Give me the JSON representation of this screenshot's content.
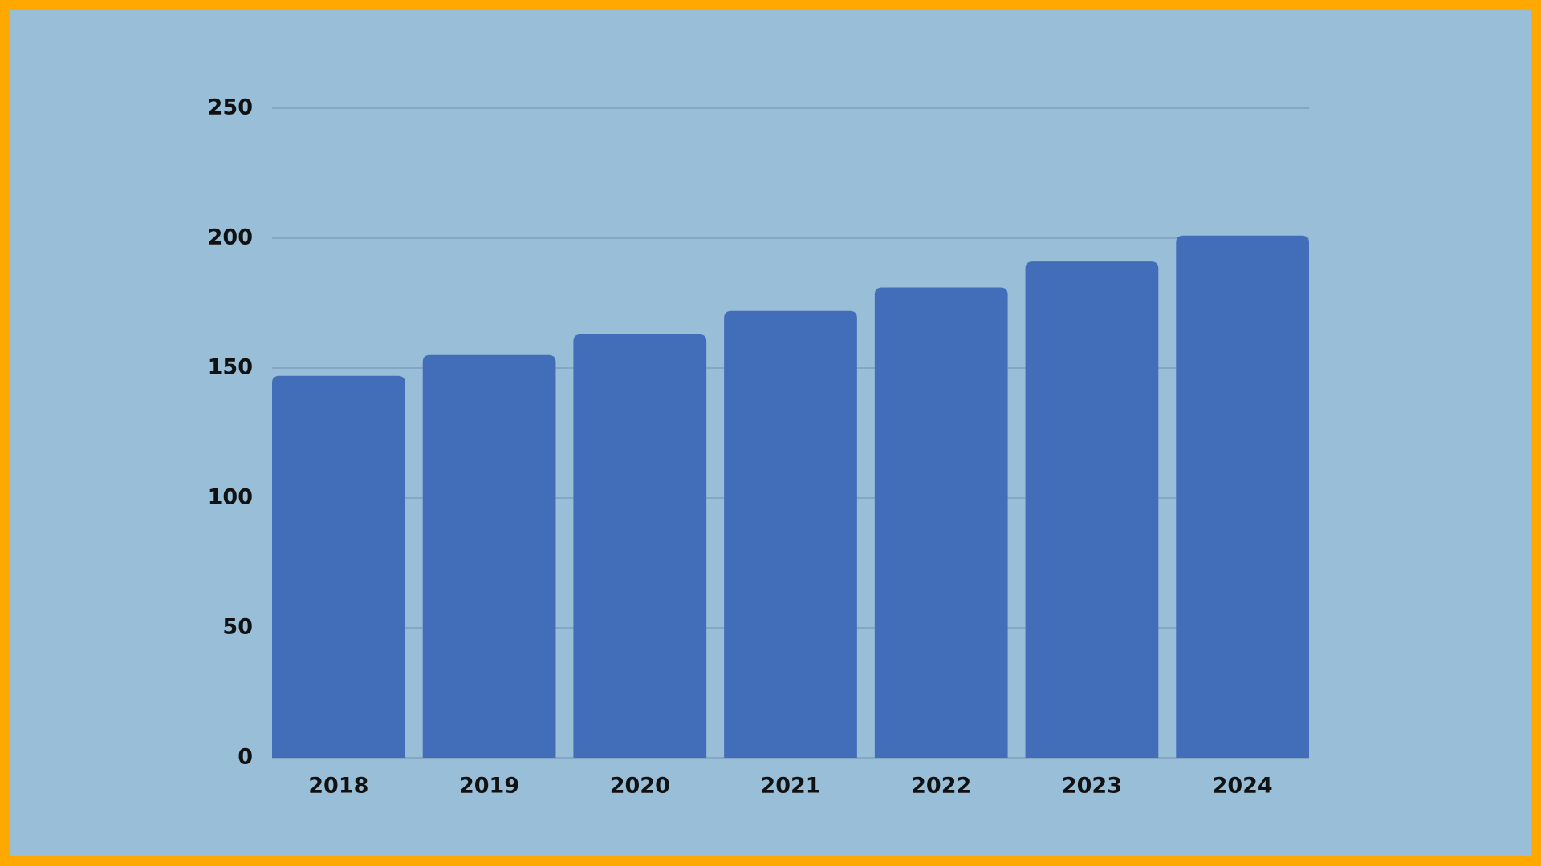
{
  "chart_data": {
    "type": "bar",
    "categories": [
      "2018",
      "2019",
      "2020",
      "2021",
      "2022",
      "2023",
      "2024"
    ],
    "values": [
      147,
      155,
      163,
      172,
      181,
      191,
      201
    ],
    "color": "#426db9",
    "ylim": [
      0,
      250
    ],
    "yticks": [
      0,
      50,
      100,
      150,
      200,
      250
    ],
    "grid": true
  }
}
